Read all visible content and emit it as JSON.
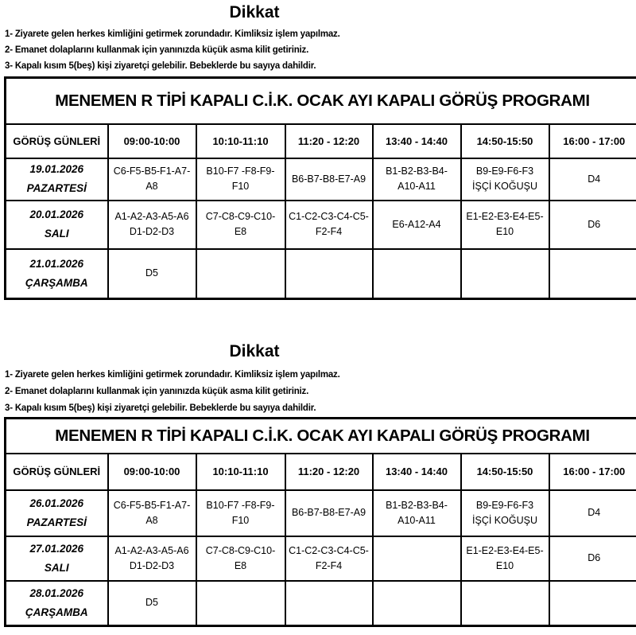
{
  "blocks": [
    {
      "heading": "Dikkat",
      "notes": [
        "1- Ziyarete gelen herkes kimliğini getirmek zorundadır. Kimliksiz işlem yapılmaz.",
        "2- Emanet dolaplarını kullanmak için yanınızda küçük asma kilit getiriniz.",
        "3- Kapalı kısım 5(beş) kişi ziyaretçi gelebilir. Bebeklerde bu sayıya dahildir."
      ],
      "title": "MENEMEN R TİPİ KAPALI C.İ.K. OCAK AYI KAPALI GÖRÜŞ PROGRAMI",
      "columns": [
        "GÖRÜŞ GÜNLERİ",
        "09:00-10:00",
        "10:10-11:10",
        "11:20 - 12:20",
        "13:40 - 14:40",
        "14:50-15:50",
        "16:00 - 17:00"
      ],
      "rows": [
        {
          "date": "19.01.2026",
          "day": "PAZARTESİ",
          "cells": [
            [
              "C6-F5-B5-F1-A7-",
              "A8"
            ],
            [
              "B10-F7 -F8-F9-",
              "F10"
            ],
            [
              "B6-B7-B8-E7-A9"
            ],
            [
              "B1-B2-B3-B4-",
              "A10-A11"
            ],
            [
              "B9-E9-F6-F3",
              "İŞÇİ KOĞUŞU"
            ],
            [
              "D4"
            ]
          ]
        },
        {
          "date": "20.01.2026",
          "day": "SALI",
          "cells": [
            [
              "A1-A2-A3-A5-A6",
              "D1-D2-D3"
            ],
            [
              "C7-C8-C9-C10-",
              "E8"
            ],
            [
              "C1-C2-C3-C4-C5-",
              "F2-F4"
            ],
            [
              "E6-A12-A4"
            ],
            [
              "E1-E2-E3-E4-E5-",
              "E10"
            ],
            [
              "D6"
            ]
          ]
        },
        {
          "date": "21.01.2026",
          "day": "ÇARŞAMBA",
          "cells": [
            [
              "D5"
            ],
            [],
            [],
            [],
            [],
            []
          ]
        }
      ]
    },
    {
      "heading": "Dikkat",
      "notes": [
        "1- Ziyarete gelen herkes kimliğini getirmek zorundadır. Kimliksiz işlem yapılmaz.",
        "2- Emanet dolaplarını kullanmak için yanınızda küçük asma kilit getiriniz.",
        "3- Kapalı kısım 5(beş) kişi ziyaretçi gelebilir. Bebeklerde bu sayıya dahildir."
      ],
      "title": "MENEMEN R TİPİ KAPALI C.İ.K. OCAK AYI KAPALI GÖRÜŞ PROGRAMI",
      "columns": [
        "GÖRÜŞ GÜNLERİ",
        "09:00-10:00",
        "10:10-11:10",
        "11:20 - 12:20",
        "13:40 - 14:40",
        "14:50-15:50",
        "16:00 - 17:00"
      ],
      "rows": [
        {
          "date": "26.01.2026",
          "day": "PAZARTESİ",
          "cells": [
            [
              "C6-F5-B5-F1-A7-",
              "A8"
            ],
            [
              "B10-F7 -F8-F9-",
              "F10"
            ],
            [
              "B6-B7-B8-E7-A9"
            ],
            [
              "B1-B2-B3-B4-",
              "A10-A11"
            ],
            [
              "B9-E9-F6-F3",
              "İŞÇİ KOĞUŞU"
            ],
            [
              "D4"
            ]
          ]
        },
        {
          "date": "27.01.2026",
          "day": "SALI",
          "cells": [
            [
              "A1-A2-A3-A5-A6",
              "D1-D2-D3"
            ],
            [
              "C7-C8-C9-C10-",
              "E8"
            ],
            [
              "C1-C2-C3-C4-C5-",
              "F2-F4"
            ],
            [],
            [
              "E1-E2-E3-E4-E5-",
              "E10"
            ],
            [
              "D6"
            ]
          ]
        },
        {
          "date": "28.01.2026",
          "day": "ÇARŞAMBA",
          "cells": [
            [
              "D5"
            ],
            [],
            [],
            [],
            [],
            []
          ]
        }
      ]
    }
  ]
}
